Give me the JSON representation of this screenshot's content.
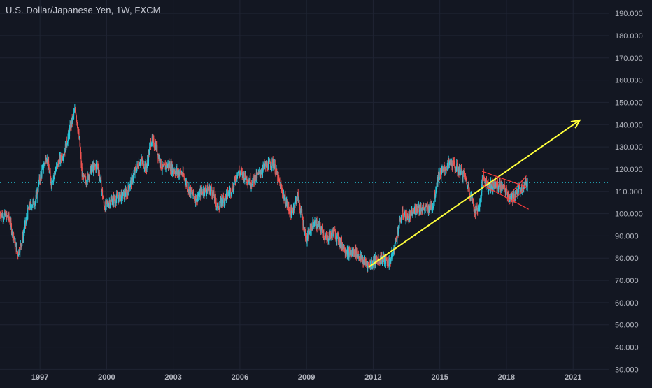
{
  "chart_data": {
    "type": "candlestick",
    "title": "U.S. Dollar/Japanese Yen, 1W, FXCM",
    "xlabel": "",
    "ylabel": "",
    "x_ticks": [
      "1997",
      "2000",
      "2003",
      "2006",
      "2009",
      "2012",
      "2015",
      "2018",
      "2021"
    ],
    "y_ticks": [
      "30.000",
      "40.000",
      "50.000",
      "60.000",
      "70.000",
      "80.000",
      "90.000",
      "100.000",
      "110.000",
      "120.000",
      "130.000",
      "140.000",
      "150.000",
      "160.000",
      "170.000",
      "180.000",
      "190.000"
    ],
    "xlim": [
      1995.2,
      2022.6
    ],
    "ylim": [
      29.5,
      196
    ],
    "grid": true,
    "current_price": 113.9,
    "up_color": "#26c6da",
    "down_color": "#ef5350",
    "price_path": [
      [
        1995.2,
        100
      ],
      [
        1995.6,
        98
      ],
      [
        1996.0,
        82
      ],
      [
        1996.2,
        88
      ],
      [
        1996.5,
        103
      ],
      [
        1996.8,
        106
      ],
      [
        1997.0,
        116
      ],
      [
        1997.3,
        126
      ],
      [
        1997.5,
        114
      ],
      [
        1997.8,
        122
      ],
      [
        1998.1,
        128
      ],
      [
        1998.4,
        140
      ],
      [
        1998.6,
        147
      ],
      [
        1998.8,
        130
      ],
      [
        1998.9,
        116
      ],
      [
        1999.1,
        115
      ],
      [
        1999.3,
        120
      ],
      [
        1999.6,
        122
      ],
      [
        1999.9,
        103
      ],
      [
        2000.2,
        106
      ],
      [
        2000.5,
        107
      ],
      [
        2000.9,
        109
      ],
      [
        2001.2,
        117
      ],
      [
        2001.5,
        124
      ],
      [
        2001.8,
        121
      ],
      [
        2002.0,
        133
      ],
      [
        2002.2,
        131
      ],
      [
        2002.5,
        120
      ],
      [
        2002.8,
        122
      ],
      [
        2003.1,
        119
      ],
      [
        2003.4,
        118
      ],
      [
        2003.7,
        111
      ],
      [
        2004.0,
        107
      ],
      [
        2004.3,
        110
      ],
      [
        2004.7,
        111
      ],
      [
        2005.0,
        103
      ],
      [
        2005.3,
        107
      ],
      [
        2005.7,
        112
      ],
      [
        2005.9,
        119
      ],
      [
        2006.2,
        117
      ],
      [
        2006.5,
        114
      ],
      [
        2006.8,
        117
      ],
      [
        2007.1,
        121
      ],
      [
        2007.5,
        123
      ],
      [
        2007.7,
        116
      ],
      [
        2008.0,
        107
      ],
      [
        2008.3,
        100
      ],
      [
        2008.6,
        108
      ],
      [
        2008.9,
        93
      ],
      [
        2009.0,
        88
      ],
      [
        2009.3,
        96
      ],
      [
        2009.6,
        94
      ],
      [
        2009.9,
        88
      ],
      [
        2010.2,
        92
      ],
      [
        2010.6,
        86
      ],
      [
        2010.9,
        82
      ],
      [
        2011.2,
        83
      ],
      [
        2011.6,
        78
      ],
      [
        2011.8,
        77
      ],
      [
        2012.1,
        79
      ],
      [
        2012.4,
        80
      ],
      [
        2012.7,
        78
      ],
      [
        2012.9,
        82
      ],
      [
        2013.1,
        92
      ],
      [
        2013.3,
        100
      ],
      [
        2013.6,
        98
      ],
      [
        2014.0,
        103
      ],
      [
        2014.4,
        102
      ],
      [
        2014.7,
        104
      ],
      [
        2014.9,
        116
      ],
      [
        2015.2,
        120
      ],
      [
        2015.5,
        123
      ],
      [
        2015.8,
        120
      ],
      [
        2016.1,
        117
      ],
      [
        2016.4,
        108
      ],
      [
        2016.6,
        101
      ],
      [
        2016.8,
        104
      ],
      [
        2016.95,
        117
      ],
      [
        2017.2,
        112
      ],
      [
        2017.5,
        113
      ],
      [
        2017.8,
        112
      ],
      [
        2018.0,
        110
      ],
      [
        2018.2,
        106
      ],
      [
        2018.5,
        110
      ],
      [
        2018.8,
        113
      ],
      [
        2018.95,
        114
      ]
    ],
    "annotations": [
      {
        "type": "trend-arrow",
        "color": "#ffff3b",
        "from": [
          2011.8,
          76
        ],
        "to": [
          2021.3,
          142
        ]
      },
      {
        "type": "channel-upper",
        "color": "#ff3b3b",
        "from": [
          2016.9,
          119
        ],
        "to": [
          2018.9,
          112
        ]
      },
      {
        "type": "channel-lower",
        "color": "#ff3b3b",
        "from": [
          2016.9,
          113
        ],
        "to": [
          2019.0,
          102
        ]
      },
      {
        "type": "wedge-upper",
        "color": "#ff3b3b",
        "from": [
          2018.1,
          108
        ],
        "to": [
          2018.9,
          117
        ]
      },
      {
        "type": "wedge-lower",
        "color": "#ff3b3b",
        "from": [
          2018.1,
          104
        ],
        "to": [
          2018.9,
          112
        ]
      }
    ]
  }
}
